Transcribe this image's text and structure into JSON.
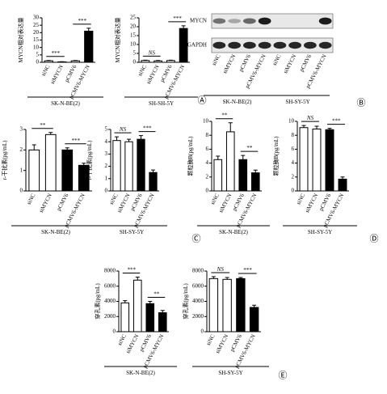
{
  "chart_data": [
    {
      "type": "bar",
      "ylabel": "MYCN相对表达量",
      "categories": [
        "siNC",
        "siMYCN",
        "pCMV6",
        "pCMV6-MYCN"
      ],
      "values": [
        1,
        0.3,
        1,
        21
      ],
      "errors": [
        0.2,
        0.1,
        0.2,
        2
      ],
      "colors": [
        "#ffffff",
        "#ffffff",
        "#ffffff",
        "#000000"
      ],
      "ylim": [
        0,
        30
      ],
      "yticks": [
        0,
        5,
        10,
        15,
        20,
        25,
        30
      ],
      "annotations": [
        "***",
        "***"
      ],
      "group": "SK-N-BE(2)"
    },
    {
      "type": "bar",
      "ylabel": "MYCN相对表达量",
      "categories": [
        "siNC",
        "siMYCN",
        "pCMV6",
        "pCMV6-MYCN"
      ],
      "values": [
        1,
        0.8,
        1,
        19
      ],
      "errors": [
        0.2,
        0.2,
        0.2,
        1.5
      ],
      "colors": [
        "#ffffff",
        "#ffffff",
        "#ffffff",
        "#000000"
      ],
      "ylim": [
        0,
        25
      ],
      "yticks": [
        0,
        5,
        10,
        15,
        20,
        25
      ],
      "annotations": [
        "NS",
        "***"
      ],
      "group": "SH-SH-5Y",
      "panel": "Ⓐ"
    },
    {
      "type": "blot",
      "rows": [
        "MYCN",
        "GAPDH"
      ],
      "categories": [
        "siNC",
        "siMYCN",
        "pCMV6",
        "pCMV6-MYCN",
        "siNC",
        "siMYCN",
        "pCMV6",
        "pCMV6-MYCN"
      ],
      "groups": [
        "SK-N-BE(2)",
        "SH-SY-5Y"
      ],
      "panel": "Ⓑ"
    },
    {
      "type": "bar",
      "ylabel": "r-干扰素(pg/mL)",
      "categories": [
        "siNC",
        "siMYCN",
        "pCMV6",
        "pCMV6-MYCN"
      ],
      "values": [
        2.0,
        2.75,
        2.0,
        1.25
      ],
      "errors": [
        0.25,
        0.1,
        0.1,
        0.1
      ],
      "colors": [
        "#ffffff",
        "#ffffff",
        "#000000",
        "#000000"
      ],
      "ylim": [
        0,
        3
      ],
      "yticks": [
        0,
        1,
        2,
        3
      ],
      "annotations": [
        "**",
        "***"
      ],
      "group": "SK-N-BE(2)"
    },
    {
      "type": "bar",
      "ylabel": "r-干扰素(pg/mL)",
      "categories": [
        "siNC",
        "siMYCN",
        "pCMV6",
        "pCMV6-MYCN"
      ],
      "values": [
        4.1,
        4.0,
        4.2,
        1.5
      ],
      "errors": [
        0.3,
        0.2,
        0.3,
        0.2
      ],
      "colors": [
        "#ffffff",
        "#ffffff",
        "#000000",
        "#000000"
      ],
      "ylim": [
        0,
        5
      ],
      "yticks": [
        0,
        1,
        2,
        3,
        4,
        5
      ],
      "annotations": [
        "NS",
        "***"
      ],
      "group": "SH-SY-5Y",
      "panel": "Ⓒ"
    },
    {
      "type": "bar",
      "ylabel": "颗粒酶B(pg/mL)",
      "categories": [
        "siNC",
        "siMYCN",
        "pCMV6",
        "pCMV6-MYCN"
      ],
      "values": [
        4.5,
        8.5,
        4.5,
        2.6
      ],
      "errors": [
        0.5,
        1.3,
        0.6,
        0.4
      ],
      "colors": [
        "#ffffff",
        "#ffffff",
        "#000000",
        "#000000"
      ],
      "ylim": [
        0,
        10
      ],
      "yticks": [
        0,
        2,
        4,
        6,
        8,
        10
      ],
      "annotations": [
        "**",
        "**"
      ],
      "group": "SK-N-BE(2)"
    },
    {
      "type": "bar",
      "ylabel": "颗粒酶B(pg/mL)",
      "categories": [
        "siNC",
        "siMYCN",
        "pCMV6",
        "pCMV6-MYCN"
      ],
      "values": [
        9.1,
        8.9,
        8.8,
        1.7
      ],
      "errors": [
        0.3,
        0.4,
        0.2,
        0.3
      ],
      "colors": [
        "#ffffff",
        "#ffffff",
        "#000000",
        "#000000"
      ],
      "ylim": [
        0,
        10
      ],
      "yticks": [
        0,
        2,
        4,
        6,
        8,
        10
      ],
      "annotations": [
        "NS",
        "***"
      ],
      "group": "SH-SY-5Y",
      "panel": "Ⓓ"
    },
    {
      "type": "bar",
      "ylabel": "穿孔素(pg/mL)",
      "categories": [
        "siNC",
        "siMYCN",
        "pCMV6",
        "pCMV6-MYCN"
      ],
      "values": [
        3800,
        6800,
        3700,
        2500
      ],
      "errors": [
        300,
        400,
        300,
        300
      ],
      "colors": [
        "#ffffff",
        "#ffffff",
        "#000000",
        "#000000"
      ],
      "ylim": [
        0,
        8000
      ],
      "yticks": [
        0,
        2000,
        4000,
        6000,
        8000
      ],
      "annotations": [
        "***",
        "**"
      ],
      "group": "SK-N-BE(2)"
    },
    {
      "type": "bar",
      "ylabel": "穿孔素(pg/mL)",
      "categories": [
        "siNC",
        "siMYCN",
        "pCMV6",
        "pCMV6-MYCN"
      ],
      "values": [
        7000,
        6900,
        7000,
        3200
      ],
      "errors": [
        250,
        250,
        150,
        300
      ],
      "colors": [
        "#ffffff",
        "#ffffff",
        "#000000",
        "#000000"
      ],
      "ylim": [
        0,
        8000
      ],
      "yticks": [
        0,
        2000,
        4000,
        6000,
        8000
      ],
      "annotations": [
        "NS",
        "***"
      ],
      "group": "SH-SY-5Y",
      "panel": "Ⓔ"
    }
  ]
}
